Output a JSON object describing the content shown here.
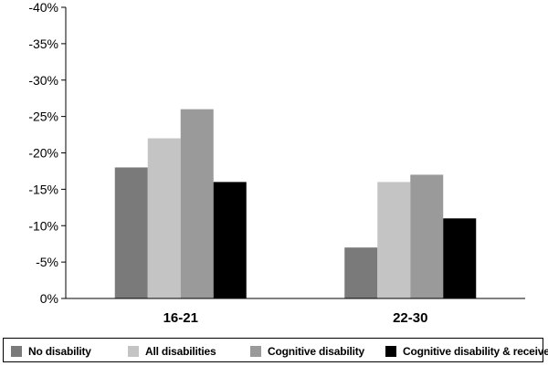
{
  "chart_data": {
    "type": "bar",
    "categories": [
      "16-21",
      "22-30"
    ],
    "series": [
      {
        "name": "No disability",
        "color": "#7a7a7a",
        "values": [
          -18,
          -7
        ]
      },
      {
        "name": "All disabilities",
        "color": "#c4c4c4",
        "values": [
          -22,
          -16
        ]
      },
      {
        "name": "Cognitive disability",
        "color": "#9a9a9a",
        "values": [
          -26,
          -17
        ]
      },
      {
        "name": "Cognitive disability & receives SSI",
        "color": "#000000",
        "values": [
          -16,
          -11
        ]
      }
    ],
    "yticks": [
      "-40%",
      "-35%",
      "-30%",
      "-25%",
      "-20%",
      "-15%",
      "-10%",
      "-5%",
      "0%"
    ],
    "ylim": [
      0,
      -40
    ],
    "title": "",
    "xlabel": "",
    "ylabel": "",
    "grid": false,
    "legend_position": "bottom"
  }
}
